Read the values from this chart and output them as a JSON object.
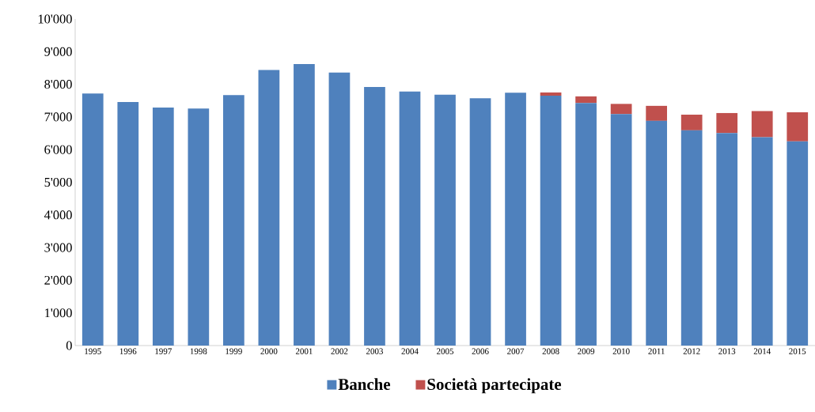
{
  "chart_data": {
    "type": "bar",
    "stacked": true,
    "categories": [
      "1995",
      "1996",
      "1997",
      "1998",
      "1999",
      "2000",
      "2001",
      "2002",
      "2003",
      "2004",
      "2005",
      "2006",
      "2007",
      "2008",
      "2009",
      "2010",
      "2011",
      "2012",
      "2013",
      "2014",
      "2015"
    ],
    "series": [
      {
        "name": "Banche",
        "color": "#4f81bd",
        "values": [
          7720,
          7460,
          7290,
          7260,
          7670,
          8440,
          8620,
          8360,
          7920,
          7780,
          7680,
          7570,
          7740,
          7650,
          7430,
          7090,
          6880,
          6590,
          6510,
          6380,
          6250
        ]
      },
      {
        "name": "Società partecipate",
        "color": "#c0504d",
        "values": [
          null,
          null,
          null,
          null,
          null,
          null,
          null,
          null,
          null,
          null,
          null,
          null,
          null,
          100,
          200,
          310,
          460,
          480,
          610,
          800,
          890
        ]
      }
    ],
    "ylim": [
      0,
      10000
    ],
    "yticks": [
      {
        "value": 0,
        "label": "0"
      },
      {
        "value": 1000,
        "label": "1'000"
      },
      {
        "value": 2000,
        "label": "2'000"
      },
      {
        "value": 3000,
        "label": "3'000"
      },
      {
        "value": 4000,
        "label": "4'000"
      },
      {
        "value": 5000,
        "label": "5'000"
      },
      {
        "value": 6000,
        "label": "6'000"
      },
      {
        "value": 7000,
        "label": "7'000"
      },
      {
        "value": 8000,
        "label": "8'000"
      },
      {
        "value": 9000,
        "label": "9'000"
      },
      {
        "value": 10000,
        "label": "10'000"
      }
    ],
    "grid": false,
    "legend": "bottom"
  }
}
